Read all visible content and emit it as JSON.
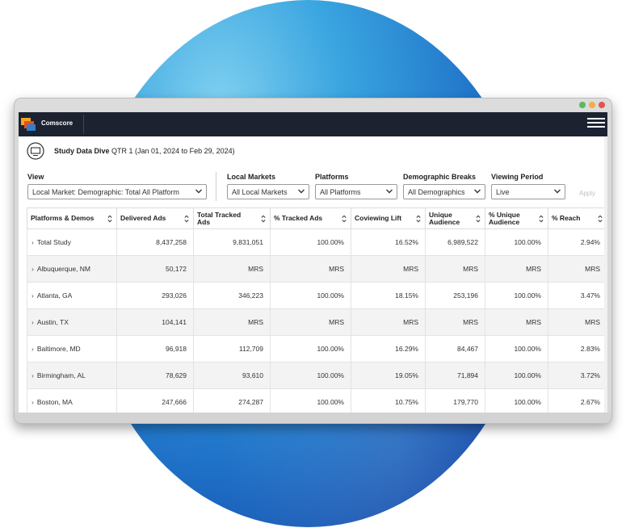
{
  "app": {
    "brand": "Comscore",
    "window_dots": [
      "#5cb85c",
      "#f0ad4e",
      "#e5534b"
    ]
  },
  "study": {
    "title_bold": "Study Data Dive",
    "title_rest": " QTR 1 (Jan 01, 2024 to Feb 29, 2024)"
  },
  "filters": {
    "view_label": "View",
    "view_value": "Local Market: Demographic: Total All Platform",
    "markets_label": "Local Markets",
    "markets_value": "All Local Markets",
    "platforms_label": "Platforms",
    "platforms_value": "All Platforms",
    "demo_label": "Demographic Breaks",
    "demo_value": "All Demographics",
    "period_label": "Viewing Period",
    "period_value": "Live",
    "apply_label": "Apply"
  },
  "table": {
    "headers": [
      "Platforms & Demos",
      "Delivered Ads",
      "Total Tracked Ads",
      "% Tracked Ads",
      "Coviewing Lift",
      "Unique Audience",
      "% Unique Audience",
      "% Reach"
    ],
    "rows": [
      [
        "Total Study",
        "8,437,258",
        "9,831,051",
        "100.00%",
        "16.52%",
        "6,989,522",
        "100.00%",
        "2.94%"
      ],
      [
        "Albuquerque, NM",
        "50,172",
        "MRS",
        "MRS",
        "MRS",
        "MRS",
        "MRS",
        "MRS"
      ],
      [
        "Atlanta, GA",
        "293,026",
        "346,223",
        "100.00%",
        "18.15%",
        "253,196",
        "100.00%",
        "3.47%"
      ],
      [
        "Austin, TX",
        "104,141",
        "MRS",
        "MRS",
        "MRS",
        "MRS",
        "MRS",
        "MRS"
      ],
      [
        "Baltimore, MD",
        "96,918",
        "112,709",
        "100.00%",
        "16.29%",
        "84,467",
        "100.00%",
        "2.83%"
      ],
      [
        "Birmingham, AL",
        "78,629",
        "93,610",
        "100.00%",
        "19.05%",
        "71,894",
        "100.00%",
        "3.72%"
      ],
      [
        "Boston, MA",
        "247,666",
        "274,287",
        "100.00%",
        "10.75%",
        "179,770",
        "100.00%",
        "2.67%"
      ]
    ]
  }
}
